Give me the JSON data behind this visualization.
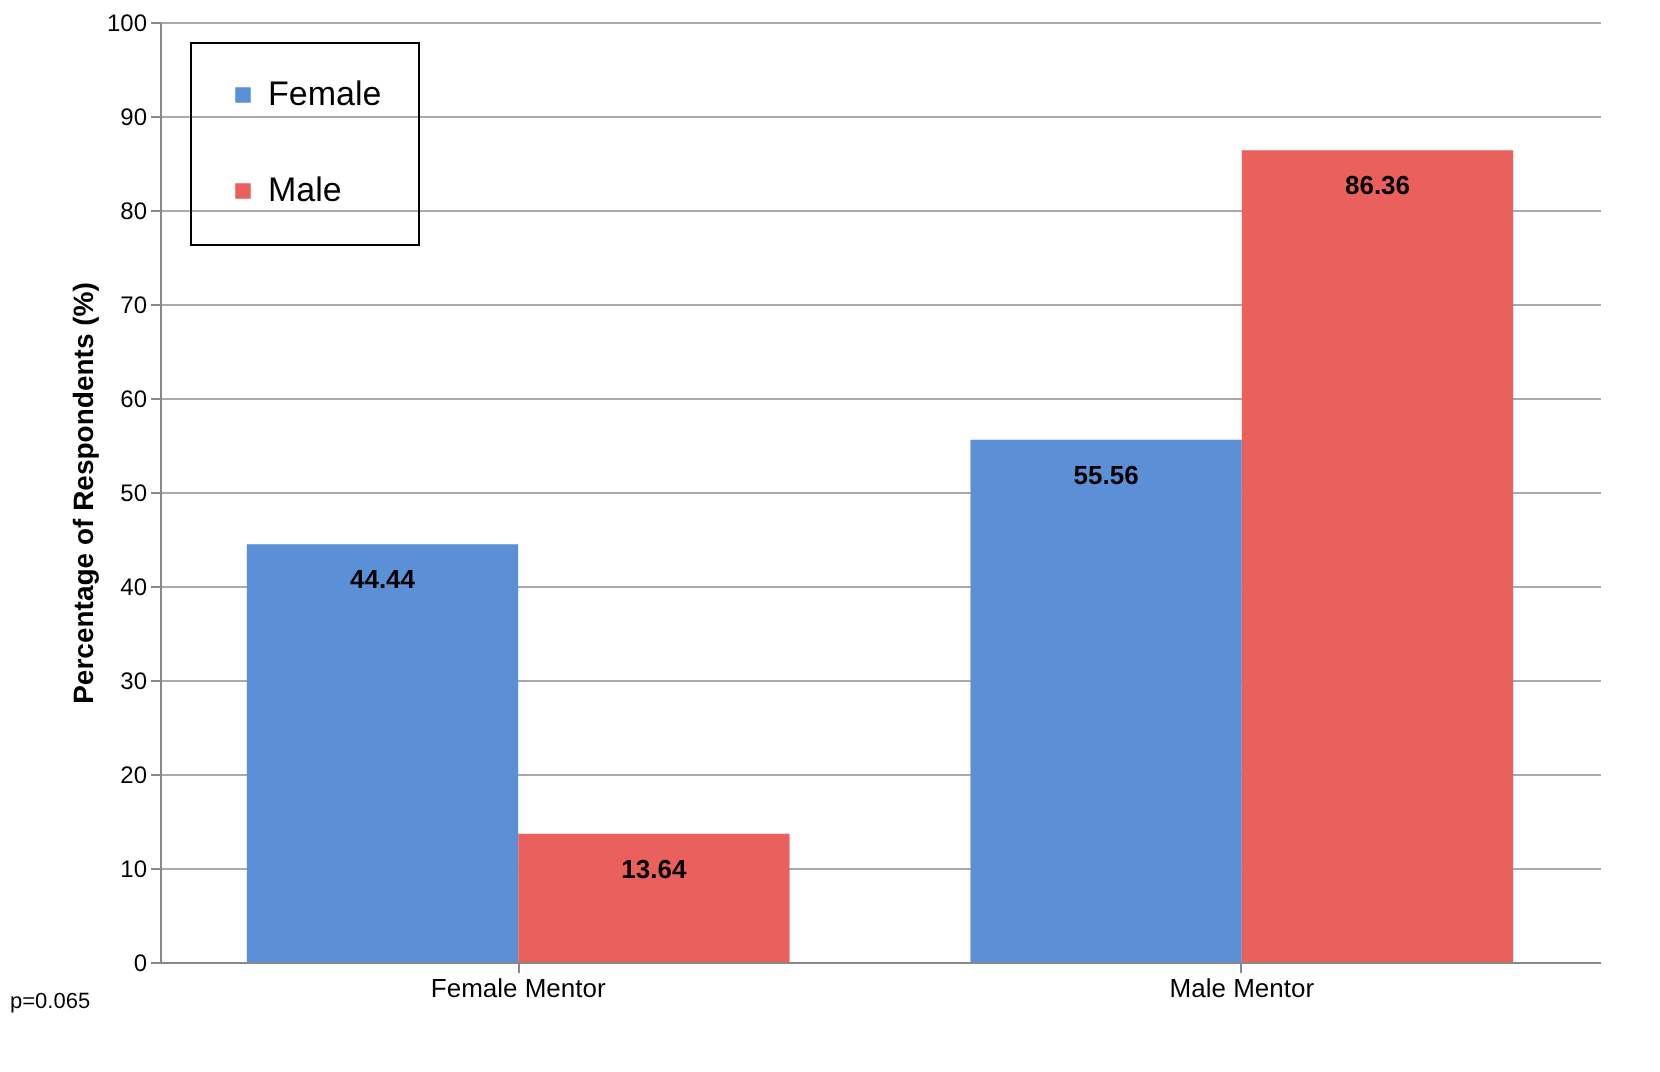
{
  "chart_data": {
    "type": "bar",
    "ylabel": "Percentage of Respondents (%)",
    "categories": [
      "Female Mentor",
      "Male Mentor"
    ],
    "series": [
      {
        "name": "Female",
        "color": "#5b8fd6",
        "values": [
          44.44,
          55.56
        ]
      },
      {
        "name": "Male",
        "color": "#e9605c",
        "values": [
          13.64,
          86.36
        ]
      }
    ],
    "ylim": [
      0,
      100
    ],
    "yticks": [
      0,
      10,
      20,
      30,
      40,
      50,
      60,
      70,
      80,
      90,
      100
    ],
    "grid": "y",
    "legend": "top left",
    "data_labels": true,
    "annotations": [
      "p=0.065"
    ]
  }
}
